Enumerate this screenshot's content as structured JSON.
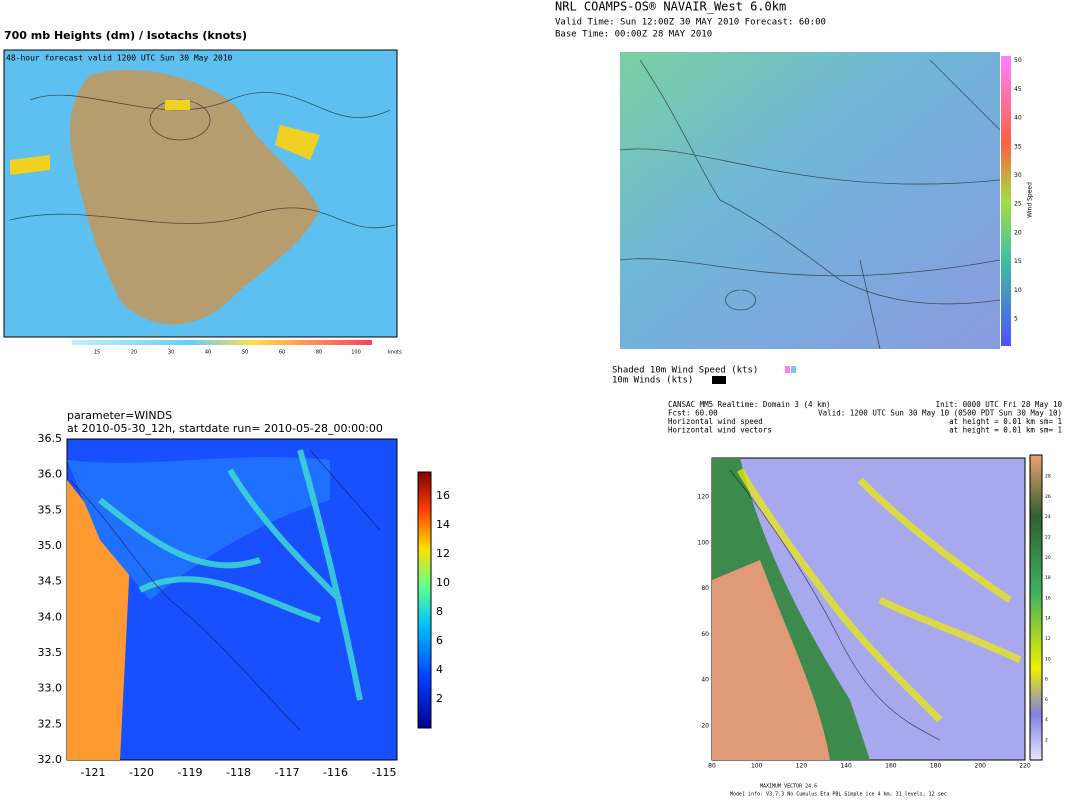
{
  "panel_a": {
    "title": "700 mb Heights (dm) / Isotachs (knots)",
    "subtitle": "48-hour forecast valid 1200 UTC Sun 30 May 2010",
    "colorbar_ticks": [
      "15",
      "20",
      "30",
      "40",
      "50",
      "60",
      "80",
      "100"
    ],
    "colorbar_unit": "knots"
  },
  "panel_b": {
    "title": "NRL COAMPS-OS® NAVAIR_West 6.0km",
    "valid": "Valid Time: Sun 12:00Z 30 MAY 2010    Forecast: 60:00",
    "base": "Base Time: 00:00Z 28 MAY 2010",
    "colorbar_label": "Wind Speed",
    "colorbar_ticks": [
      "5",
      "10",
      "15",
      "20",
      "25",
      "30",
      "35",
      "40",
      "45",
      "50"
    ],
    "legend": [
      "Shaded 10m Wind Speed (kts)",
      "10m Winds (kts)"
    ]
  },
  "panel_c": {
    "title": "parameter=WINDS",
    "subtitle": "at 2010-05-30_12h, startdate run= 2010-05-28_00:00:00",
    "yticks": [
      "36.5",
      "36.0",
      "35.5",
      "35.0",
      "34.5",
      "34.0",
      "33.5",
      "33.0",
      "32.5",
      "32.0"
    ],
    "xticks": [
      "-121",
      "-120",
      "-119",
      "-118",
      "-117",
      "-116",
      "-115"
    ],
    "colorbar_ticks": [
      "2",
      "4",
      "6",
      "8",
      "10",
      "12",
      "14",
      "16"
    ]
  },
  "panel_d": {
    "header": [
      "CANSAC MM5 Realtime: Domain 3  (4 km)",
      "Fcst:   60.00",
      "Horizontal wind speed",
      "Horizontal wind vectors"
    ],
    "header_right": [
      "Init: 0000 UTC Fri 28 May 10",
      "Valid: 1200 UTC Sun 30 May 10 (0500 PDT Sun 30 May 10)",
      "at height =  0.01 km         sm= 1",
      "at height =  0.01 km         sm= 1"
    ],
    "yticks": [
      "120",
      "100",
      "80",
      "60",
      "40",
      "20"
    ],
    "xticks": [
      "80",
      "100",
      "120",
      "140",
      "160",
      "180",
      "200",
      "220"
    ],
    "colorbar_ticks": [
      "2",
      "4",
      "6",
      "8",
      "10",
      "12",
      "14",
      "16",
      "18",
      "20",
      "22",
      "24",
      "26",
      "28"
    ],
    "footer": [
      "MAXIMUM VECTOR  24.6",
      "Model info: V3.7.3  No Cumulus  Eta PBL   Simple ice    4 km, 31 levels,  12 sec"
    ]
  }
}
